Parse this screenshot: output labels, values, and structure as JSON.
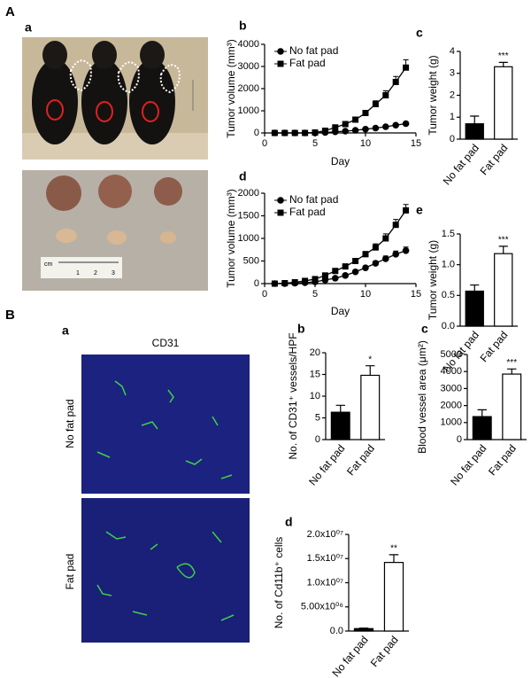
{
  "sections": [
    {
      "label": "A",
      "photo_panel": "a"
    },
    {
      "label": "B",
      "photo_panel": "a",
      "image_title": "CD31",
      "row_labels": [
        "No fat pad",
        "Fat pad"
      ]
    }
  ],
  "ruler": {
    "unit": "cm",
    "marks": [
      "1",
      "2",
      "3"
    ]
  },
  "chart_data": [
    {
      "type": "line",
      "panel": "b",
      "x_label": "Day",
      "y_label": "Tumor volume (mm³)",
      "x": [
        1,
        2,
        3,
        4,
        5,
        6,
        7,
        8,
        9,
        10,
        11,
        12,
        13,
        14
      ],
      "series": [
        {
          "name": "No fat pad",
          "color": "#000000",
          "marker": "circle",
          "values": [
            0,
            0,
            0,
            0,
            0,
            20,
            50,
            80,
            120,
            170,
            220,
            280,
            350,
            420
          ],
          "errors": [
            0,
            0,
            0,
            0,
            0,
            10,
            15,
            20,
            25,
            30,
            35,
            40,
            50,
            60
          ]
        },
        {
          "name": "Fat pad",
          "color": "#000000",
          "marker": "square",
          "values": [
            0,
            0,
            0,
            0,
            20,
            100,
            250,
            400,
            600,
            900,
            1300,
            1700,
            2300,
            2950
          ],
          "errors": [
            0,
            0,
            0,
            0,
            10,
            20,
            40,
            60,
            80,
            100,
            150,
            200,
            250,
            350
          ]
        }
      ],
      "xlim": [
        0,
        15
      ],
      "xticks": [
        0,
        5,
        10,
        15
      ],
      "ylim": [
        0,
        4000
      ],
      "yticks": [
        0,
        1000,
        2000,
        3000,
        4000
      ],
      "legend": "upper left"
    },
    {
      "type": "bar",
      "panel": "c",
      "y_label": "Tumor weight (g)",
      "categories": [
        "No fat pad",
        "Fat pad"
      ],
      "values": [
        0.7,
        3.3
      ],
      "errors": [
        0.35,
        0.2
      ],
      "colors": [
        "#000000",
        "#ffffff"
      ],
      "significance": "***",
      "ylim": [
        0,
        4
      ],
      "yticks": [
        0,
        1,
        2,
        3,
        4
      ]
    },
    {
      "type": "line",
      "panel": "d",
      "x_label": "Day",
      "y_label": "Tumor volume (mm³)",
      "x": [
        1,
        2,
        3,
        4,
        5,
        6,
        7,
        8,
        9,
        10,
        11,
        12,
        13,
        14
      ],
      "series": [
        {
          "name": "No fat pad",
          "color": "#000000",
          "marker": "circle",
          "values": [
            0,
            0,
            10,
            20,
            40,
            80,
            120,
            180,
            260,
            350,
            450,
            550,
            650,
            730
          ],
          "errors": [
            0,
            0,
            5,
            10,
            10,
            15,
            20,
            25,
            30,
            40,
            50,
            60,
            70,
            80
          ]
        },
        {
          "name": "Fat pad",
          "color": "#000000",
          "marker": "square",
          "values": [
            0,
            10,
            30,
            60,
            100,
            180,
            280,
            380,
            500,
            650,
            800,
            1000,
            1300,
            1620
          ],
          "errors": [
            0,
            5,
            10,
            15,
            20,
            25,
            30,
            40,
            50,
            60,
            80,
            100,
            120,
            130
          ]
        }
      ],
      "xlim": [
        0,
        15
      ],
      "xticks": [
        0,
        5,
        10,
        15
      ],
      "ylim": [
        0,
        2000
      ],
      "yticks": [
        0,
        500,
        1000,
        1500,
        2000
      ],
      "legend": "upper left"
    },
    {
      "type": "bar",
      "panel": "e",
      "y_label": "Tumor weight (g)",
      "categories": [
        "No fat pad",
        "Fat pad"
      ],
      "values": [
        0.57,
        1.18
      ],
      "errors": [
        0.1,
        0.12
      ],
      "colors": [
        "#000000",
        "#ffffff"
      ],
      "significance": "***",
      "ylim": [
        0,
        1.5
      ],
      "yticks": [
        {
          "value": 0,
          "label": "0.0"
        },
        0.5,
        {
          "value": 1,
          "label": "1.0"
        },
        1.5
      ]
    },
    {
      "type": "bar",
      "panel": "b",
      "y_label": "No. of CD31⁺ vessels/HPF",
      "categories": [
        "No fat pad",
        "Fat pad"
      ],
      "values": [
        6.3,
        14.8
      ],
      "errors": [
        1.6,
        2.2
      ],
      "colors": [
        "#000000",
        "#ffffff"
      ],
      "significance": "*",
      "ylim": [
        0,
        20
      ],
      "yticks": [
        0,
        5,
        10,
        15,
        20
      ]
    },
    {
      "type": "bar",
      "panel": "c",
      "y_label": "Blood vessel area (μm²)",
      "categories": [
        "No fat pad",
        "Fat pad"
      ],
      "values": [
        1350,
        3850
      ],
      "errors": [
        400,
        300
      ],
      "colors": [
        "#000000",
        "#ffffff"
      ],
      "significance": "***",
      "ylim": [
        0,
        5000
      ],
      "yticks": [
        0,
        1000,
        2000,
        3000,
        4000,
        5000
      ]
    },
    {
      "type": "bar",
      "panel": "d",
      "y_label": "No. of Cd11b⁺ cells",
      "categories": [
        "No fat pad",
        "Fat pad"
      ],
      "values": [
        500000,
        14200000
      ],
      "errors": [
        100000,
        1600000
      ],
      "colors": [
        "#000000",
        "#ffffff"
      ],
      "significance": "**",
      "ylim": [
        0,
        20000000
      ],
      "yticks": [
        {
          "value": 0,
          "label": "0.0"
        },
        {
          "value": 5000000,
          "label": "5.00x10⁰⁶"
        },
        {
          "value": 10000000,
          "label": "1.0x10⁰⁷"
        },
        {
          "value": 15000000,
          "label": "1.5x10⁰⁷"
        },
        {
          "value": 20000000,
          "label": "2.0x10⁰⁷"
        }
      ]
    }
  ]
}
